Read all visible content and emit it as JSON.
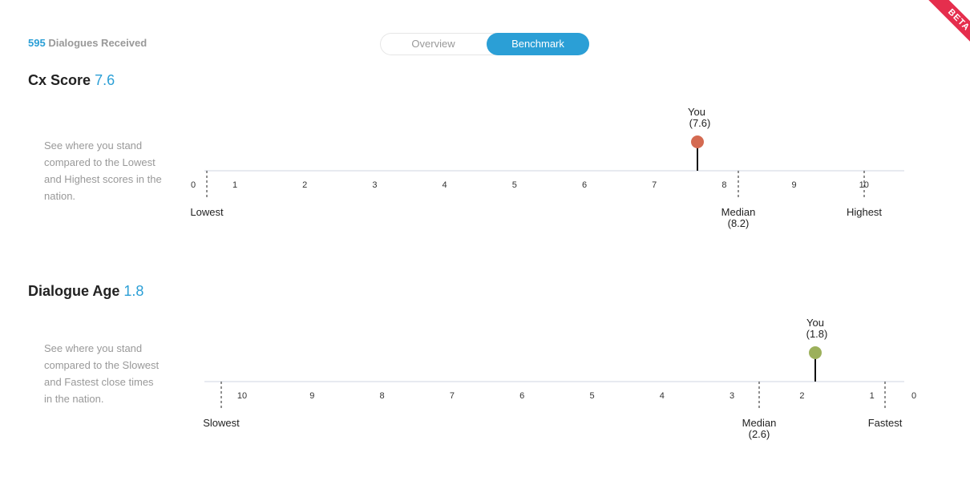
{
  "header": {
    "dialogues_count": "595",
    "dialogues_label": " Dialogues Received",
    "tabs": [
      {
        "label": "Overview",
        "active": false
      },
      {
        "label": "Benchmark",
        "active": true
      }
    ],
    "beta_badge": "BETA"
  },
  "colors": {
    "accent": "#2b9fd6",
    "you_marker_cx": "#d46a51",
    "you_marker_age": "#9cb05b",
    "gradient_start": "#e24a5a",
    "gradient_end": "#b8d07a",
    "axis": "#cfd6e0"
  },
  "cx_score": {
    "title": "Cx Score",
    "value": "7.6",
    "description": "See where you stand compared to the Lowest and Highest scores in the nation.",
    "ticks": [
      "0",
      "1",
      "2",
      "3",
      "4",
      "5",
      "6",
      "7",
      "8",
      "9",
      "10"
    ],
    "lowest_label": "Lowest",
    "highest_label": "Highest",
    "median_label": "Median",
    "median_value": "(8.2)",
    "you_label": "You",
    "you_value": "(7.6)"
  },
  "dialogue_age": {
    "title": "Dialogue Age",
    "value": "1.8",
    "description": "See where you stand compared to the Slowest and Fastest close times in the nation.",
    "ticks": [
      "10",
      "9",
      "8",
      "7",
      "6",
      "5",
      "4",
      "3",
      "2",
      "1",
      "0"
    ],
    "slowest_label": "Slowest",
    "fastest_label": "Fastest",
    "median_label": "Median",
    "median_value": "(2.6)",
    "you_label": "You",
    "you_value": "(1.8)"
  },
  "chart_data": [
    {
      "type": "scatter",
      "title": "Cx Score",
      "x_range": [
        0,
        10
      ],
      "ticks": [
        0,
        1,
        2,
        3,
        4,
        5,
        6,
        7,
        8,
        9,
        10
      ],
      "lowest": 0.2,
      "highest": 10,
      "median": 8.2,
      "you": 7.6
    },
    {
      "type": "scatter",
      "title": "Dialogue Age",
      "x_range": [
        10,
        0
      ],
      "reversed": true,
      "ticks": [
        10,
        9,
        8,
        7,
        6,
        5,
        4,
        3,
        2,
        1,
        0
      ],
      "slowest": 10.3,
      "fastest": 0.2,
      "median": 2.6,
      "you": 1.8
    }
  ]
}
